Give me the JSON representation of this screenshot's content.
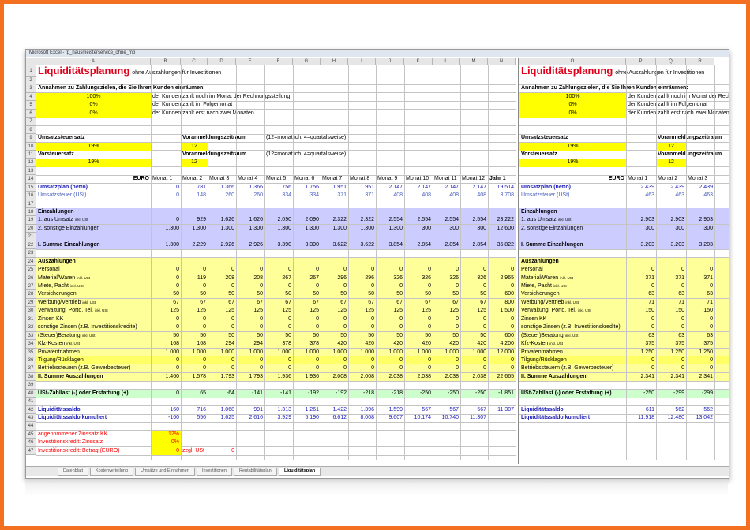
{
  "window": {
    "title": "Microsoft Excel - fp_hausmeisterservice_ohne_mb"
  },
  "columns": [
    "A",
    "B",
    "C",
    "D",
    "E",
    "F",
    "G",
    "H",
    "I",
    "J",
    "K",
    "L",
    "M",
    "N"
  ],
  "right_columns": [
    "O",
    "P",
    "Q",
    "R"
  ],
  "tabs": [
    "Datenblatt",
    "Kostenverteilung",
    "Umsätze und Einnahmen",
    "Investitionen",
    "Rentabilitätsplan",
    "Liquiditätsplan"
  ],
  "rows": [
    {
      "n": 1,
      "title": "Liquiditätsplanung",
      "subtitle": "ohne Auszahlungen für Investitionen"
    },
    {
      "n": 2
    },
    {
      "n": 3,
      "cells": {
        "A": "Annahmen zu Zahlungszielen, die Sie Ihren Kunden einräumen:"
      },
      "bold_cells": [
        "A"
      ]
    },
    {
      "n": 4,
      "cells": {
        "A": "100%",
        "B": "der Kunden zahlt noch im Monat der Rechnungsstellung"
      },
      "cell_fill": {
        "A": "#ffff00"
      }
    },
    {
      "n": 5,
      "cells": {
        "A": "0%",
        "B": "der Kunden zahlt im Folgemonat"
      },
      "cell_fill": {
        "A": "#ffff00"
      }
    },
    {
      "n": 6,
      "cells": {
        "A": "0%",
        "B": "der Kunden zahlt erst nach zwei Monaten"
      },
      "cell_fill": {
        "A": "#ffff00"
      }
    },
    {
      "n": 7
    },
    {
      "n": 8
    },
    {
      "n": 9,
      "cells": {
        "A": "Umsatzsteuersatz",
        "C": "Voranmeldungszeitraum",
        "F": "(12=monatlich, 4=quartalsweise)"
      },
      "bold_cells": [
        "A",
        "C"
      ]
    },
    {
      "n": 10,
      "cells": {
        "A": "19%",
        "C": "12"
      },
      "cell_fill": {
        "A": "#ffff00",
        "C": "#ffff00"
      }
    },
    {
      "n": 11,
      "cells": {
        "A": "Vorsteuersatz",
        "C": "Voranmeldungszeitraum",
        "F": "(12=monatlich, 4=quartalsweise)"
      },
      "bold_cells": [
        "A",
        "C"
      ]
    },
    {
      "n": 12,
      "cells": {
        "A": "19%",
        "C": "12"
      },
      "cell_fill": {
        "A": "#ffff00",
        "C": "#ffff00"
      }
    },
    {
      "n": 13
    },
    {
      "n": 14,
      "header": {
        "label": "EURO",
        "months": [
          "Monat 1",
          "Monat 2",
          "Monat 3",
          "Monat 4",
          "Monat 5",
          "Monat 6",
          "Monat 7",
          "Monat 8",
          "Monat 9",
          "Monat 10",
          "Monat 11",
          "Monat 12"
        ],
        "total": "Jahr 1"
      }
    },
    {
      "n": 15,
      "label": "Umsatzplan (netto)",
      "values": [
        "0",
        "781",
        "1.366",
        "1.366",
        "1.756",
        "1.756",
        "1.951",
        "1.951",
        "2.147",
        "2.147",
        "2.147",
        "2.147"
      ],
      "total": "19.514",
      "right": [
        "2.439",
        "2.439",
        "2.439"
      ],
      "color": "#1a1ab8",
      "bold": true
    },
    {
      "n": 16,
      "label": "Umsatzsteuer (USt)",
      "values": [
        "0",
        "148",
        "260",
        "260",
        "334",
        "334",
        "371",
        "371",
        "408",
        "408",
        "408",
        "408"
      ],
      "total": "3.708",
      "right": [
        "463",
        "463",
        "463"
      ],
      "color": "#4a5fc0"
    },
    {
      "n": 17
    },
    {
      "n": 18,
      "label": "Einzahlungen",
      "fill": "#ccccff",
      "bold": true
    },
    {
      "n": 19,
      "label": "1. aus Umsatz",
      "label_note": "inkl. USt",
      "values": [
        "0",
        "929",
        "1.626",
        "1.626",
        "2.090",
        "2.090",
        "2.322",
        "2.322",
        "2.554",
        "2.554",
        "2.554",
        "2.554"
      ],
      "total": "23.222",
      "right": [
        "2.903",
        "2.903",
        "2.903"
      ],
      "fill": "#ccccff"
    },
    {
      "n": 20,
      "label": "2. sonstige Einzahlungen",
      "values": [
        "1.300",
        "1.300",
        "1.300",
        "1.300",
        "1.300",
        "1.300",
        "1.300",
        "1.300",
        "1.300",
        "300",
        "300",
        "300"
      ],
      "total": "12.600",
      "right": [
        "300",
        "300",
        "300"
      ],
      "fill": "#ccccff"
    },
    {
      "n": 21,
      "fill": "#ccccff"
    },
    {
      "n": 22,
      "label": "I. Summe Einzahlungen",
      "values": [
        "1.300",
        "2.229",
        "2.926",
        "2.926",
        "3.390",
        "3.390",
        "3.622",
        "3.622",
        "3.854",
        "2.854",
        "2.854",
        "2.854"
      ],
      "total": "35.822",
      "right": [
        "3.203",
        "3.203",
        "3.203"
      ],
      "fill": "#ccccff",
      "bold": true
    },
    {
      "n": 23
    },
    {
      "n": 24,
      "label": "Auszahlungen",
      "fill": "#ffff99",
      "bold": true
    },
    {
      "n": 25,
      "label": "Personal",
      "values": [
        "0",
        "0",
        "0",
        "0",
        "0",
        "0",
        "0",
        "0",
        "0",
        "0",
        "0",
        "0"
      ],
      "total": "0",
      "right": [
        "0",
        "0",
        "0"
      ],
      "fill": "#ffff99"
    },
    {
      "n": 26,
      "label": "Material/Waren",
      "label_note": "inkl. USt",
      "values": [
        "0",
        "119",
        "208",
        "208",
        "267",
        "267",
        "296",
        "296",
        "326",
        "326",
        "326",
        "326"
      ],
      "total": "2.965",
      "right": [
        "371",
        "371",
        "371"
      ],
      "fill": "#ffff99"
    },
    {
      "n": 27,
      "label": "Miete, Pacht",
      "label_note": "inkl. USt",
      "values": [
        "0",
        "0",
        "0",
        "0",
        "0",
        "0",
        "0",
        "0",
        "0",
        "0",
        "0",
        "0"
      ],
      "total": "0",
      "right": [
        "0",
        "0",
        "0"
      ],
      "fill": "#ffff99"
    },
    {
      "n": 28,
      "label": "Versicherungen",
      "values": [
        "50",
        "50",
        "50",
        "50",
        "50",
        "50",
        "50",
        "50",
        "50",
        "50",
        "50",
        "50"
      ],
      "total": "600",
      "right": [
        "63",
        "63",
        "63"
      ],
      "fill": "#ffff99"
    },
    {
      "n": 29,
      "label": "Werbung/Vertrieb",
      "label_note": "inkl. USt",
      "values": [
        "67",
        "67",
        "67",
        "67",
        "67",
        "67",
        "67",
        "67",
        "67",
        "67",
        "67",
        "67"
      ],
      "total": "800",
      "right": [
        "71",
        "71",
        "71"
      ],
      "fill": "#ffff99"
    },
    {
      "n": 30,
      "label": "Verwaltung, Porto, Tel.",
      "label_note": "inkl. USt",
      "values": [
        "125",
        "125",
        "125",
        "125",
        "125",
        "125",
        "125",
        "125",
        "125",
        "125",
        "125",
        "125"
      ],
      "total": "1.500",
      "right": [
        "150",
        "150",
        "150"
      ],
      "fill": "#ffff99"
    },
    {
      "n": 31,
      "label": "Zinsen KK",
      "values": [
        "0",
        "0",
        "0",
        "0",
        "0",
        "0",
        "0",
        "0",
        "0",
        "0",
        "0",
        "0"
      ],
      "total": "0",
      "right": [
        "0",
        "0",
        "0"
      ],
      "fill": "#ffff99"
    },
    {
      "n": 32,
      "label": "sonstige Zinsen (z.B. Investitionskredite)",
      "values": [
        "0",
        "0",
        "0",
        "0",
        "0",
        "0",
        "0",
        "0",
        "0",
        "0",
        "0",
        "0"
      ],
      "total": "0",
      "right": [
        "0",
        "0",
        "0"
      ],
      "fill": "#ffff99"
    },
    {
      "n": 33,
      "label": "(Steuer)Beratung",
      "label_note": "inkl. USt",
      "values": [
        "50",
        "50",
        "50",
        "50",
        "50",
        "50",
        "50",
        "50",
        "50",
        "50",
        "50",
        "50"
      ],
      "total": "600",
      "right": [
        "63",
        "63",
        "63"
      ],
      "fill": "#ffff99"
    },
    {
      "n": 34,
      "label": "Kfz-Kosten",
      "label_note": "inkl. USt",
      "values": [
        "168",
        "168",
        "294",
        "294",
        "378",
        "378",
        "420",
        "420",
        "420",
        "420",
        "420",
        "420"
      ],
      "total": "4.200",
      "right": [
        "375",
        "375",
        "375"
      ],
      "fill": "#ffff99"
    },
    {
      "n": 35,
      "label": "Privatentnahmen",
      "values": [
        "1.000",
        "1.000",
        "1.000",
        "1.000",
        "1.000",
        "1.000",
        "1.000",
        "1.000",
        "1.000",
        "1.000",
        "1.000",
        "1.000"
      ],
      "total": "12.000",
      "right": [
        "1.250",
        "1.250",
        "1.250"
      ],
      "fill": "#ffff99"
    },
    {
      "n": 36,
      "label": "Tilgung/Rücklagen",
      "values": [
        "0",
        "0",
        "0",
        "0",
        "0",
        "0",
        "0",
        "0",
        "0",
        "0",
        "0",
        "0"
      ],
      "total": "0",
      "right": [
        "0",
        "0",
        "0"
      ],
      "fill": "#ffff66"
    },
    {
      "n": 37,
      "label": "Betriebssteuern (z.B. Gewerbesteuer)",
      "values": [
        "0",
        "0",
        "0",
        "0",
        "0",
        "0",
        "0",
        "0",
        "0",
        "0",
        "0",
        "0"
      ],
      "total": "0",
      "right": [
        "0",
        "0",
        "0"
      ],
      "fill": "#ffff99"
    },
    {
      "n": 38,
      "label": "II. Summe Auszahlungen",
      "values": [
        "1.460",
        "1.578",
        "1.793",
        "1.793",
        "1.936",
        "1.936",
        "2.008",
        "2.008",
        "2.038",
        "2.038",
        "2.038",
        "2.038"
      ],
      "total": "22.665",
      "right": [
        "2.341",
        "2.341",
        "2.341"
      ],
      "fill": "#ffff99",
      "bold": true
    },
    {
      "n": 39
    },
    {
      "n": 40,
      "label": "USt-Zahllast (-) oder Erstattung (+)",
      "values": [
        "0",
        "65",
        "-64",
        "-141",
        "-141",
        "-192",
        "-192",
        "-218",
        "-218",
        "-250",
        "-250",
        "-250"
      ],
      "total": "-1.851",
      "right": [
        "-250",
        "-299",
        "-299"
      ],
      "fill": "#ccffcc",
      "bold": true
    },
    {
      "n": 41
    },
    {
      "n": 42,
      "label": "Liquiditätssaldo",
      "values": [
        "-160",
        "716",
        "1.068",
        "991",
        "1.313",
        "1.261",
        "1.422",
        "1.396",
        "1.599",
        "567",
        "567",
        "567"
      ],
      "total": "11.307",
      "right": [
        "611",
        "562",
        "562"
      ],
      "color": "#1a1ab8",
      "bold": true
    },
    {
      "n": 43,
      "label": "Liquiditätssaldo kumuliert",
      "values": [
        "-160",
        "556",
        "1.625",
        "2.616",
        "3.929",
        "5.190",
        "6.612",
        "8.008",
        "9.607",
        "10.174",
        "10.740",
        "11.307"
      ],
      "right": [
        "11.918",
        "12.480",
        "13.042"
      ],
      "color": "#1a1ab8",
      "bold": true
    },
    {
      "n": 44
    },
    {
      "n": 45,
      "cells": {
        "A": "angenommener Zinssatz KK",
        "B": "12%"
      },
      "cell_fill": {
        "B": "#ffff00"
      },
      "color": "#ff0000"
    },
    {
      "n": 46,
      "cells": {
        "A": "Investitionskredit: Zinssatz",
        "B": "0%"
      },
      "cell_fill": {
        "B": "#ffff00"
      },
      "color": "#ff0000"
    },
    {
      "n": 47,
      "cells": {
        "A": "Investitionskredit: Betrag (EURO)",
        "B": "0",
        "C": "zzgl. USt",
        "D": "0"
      },
      "cell_fill": {
        "B": "#ffff00"
      },
      "color": "#ff0000"
    }
  ]
}
